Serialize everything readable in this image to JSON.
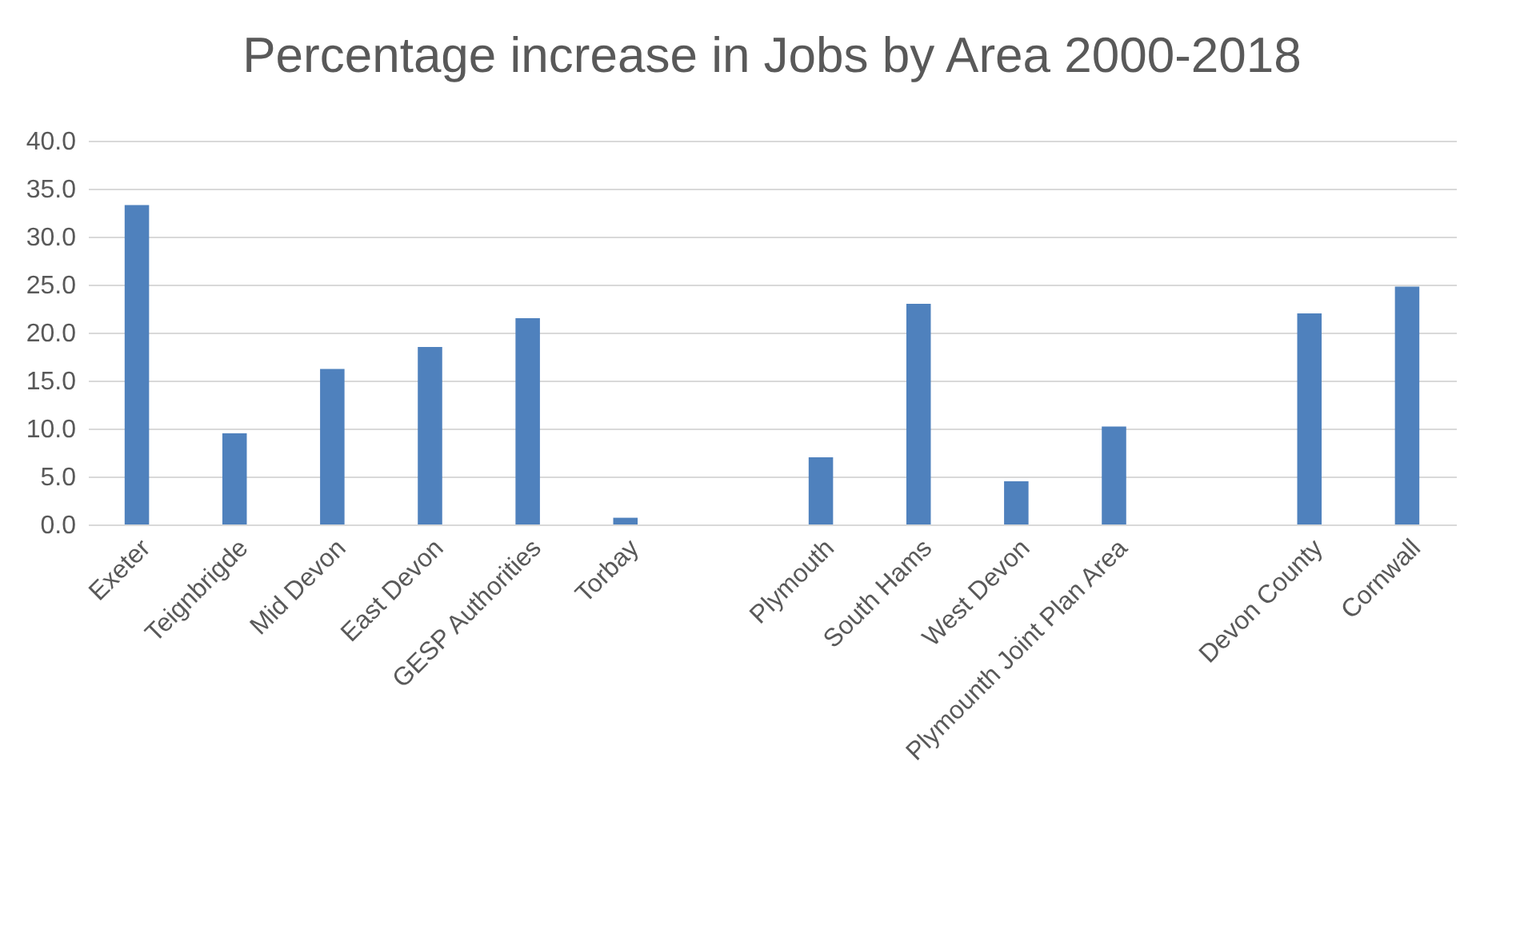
{
  "chart_data": {
    "type": "bar",
    "title": "Percentage increase in Jobs by Area 2000-2018",
    "categories": [
      "Exeter",
      "Teignbrigde",
      "Mid Devon",
      "East Devon",
      "GESP Authorities",
      "Torbay",
      null,
      "Plymouth",
      "South Hams",
      "West Devon",
      "Plymounth Joint Plan Area",
      null,
      "Devon County",
      "Cornwall"
    ],
    "values": [
      33.3,
      9.5,
      16.2,
      18.5,
      21.5,
      0.7,
      null,
      7.0,
      23.0,
      4.5,
      10.2,
      null,
      22.0,
      24.8
    ],
    "color": "#4f81bd",
    "ylim": [
      0,
      40
    ],
    "yticks": [
      {
        "value": 0,
        "label": "0.0"
      },
      {
        "value": 5,
        "label": "5.0"
      },
      {
        "value": 10,
        "label": "10.0"
      },
      {
        "value": 15,
        "label": "15.0"
      },
      {
        "value": 20,
        "label": "20.0"
      },
      {
        "value": 25,
        "label": "25.0"
      },
      {
        "value": 30,
        "label": "30.0"
      },
      {
        "value": 35,
        "label": "35.0"
      },
      {
        "value": 40,
        "label": "40.0"
      }
    ],
    "grid": "y"
  }
}
